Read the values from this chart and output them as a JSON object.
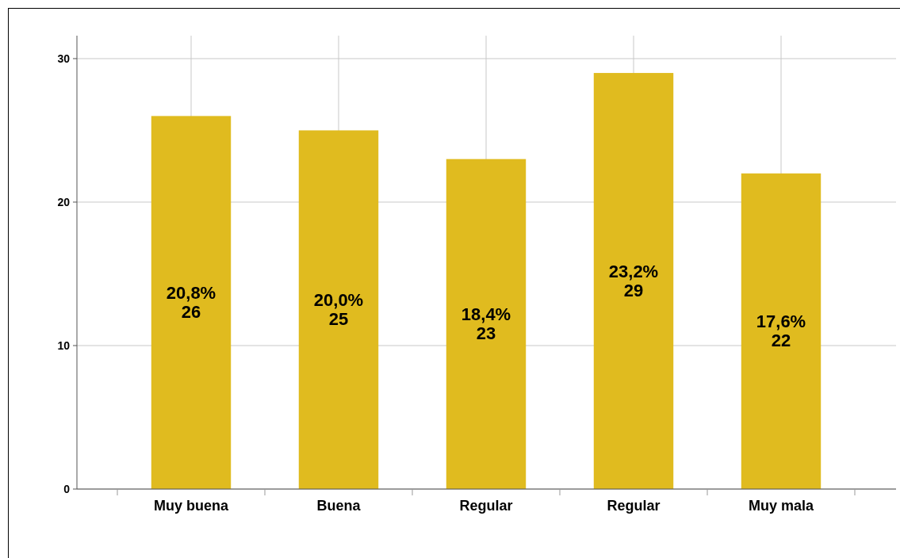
{
  "chart_data": {
    "type": "bar",
    "categories": [
      "Muy buena",
      "Buena",
      "Regular",
      "Regular",
      "Muy mala"
    ],
    "values": [
      26,
      25,
      23,
      29,
      22
    ],
    "value_labels": [
      "20,8%\n26",
      "20,0%\n25",
      "18,4%\n23",
      "23,2%\n29",
      "17,6%\n22"
    ],
    "color": "#e0bb1f",
    "ylim": [
      0,
      31.6
    ],
    "yticks": [
      0,
      10,
      20,
      30
    ],
    "grid": true
  }
}
